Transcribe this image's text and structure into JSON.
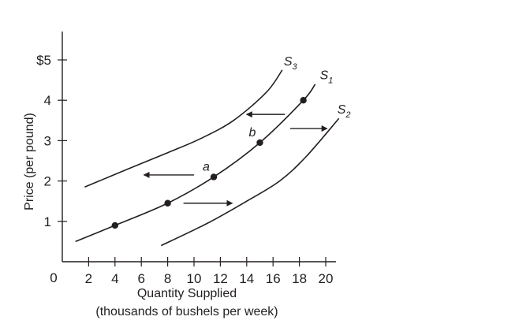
{
  "chart_data": {
    "type": "line",
    "title": "",
    "xlabel": "Quantity Supplied",
    "xlabel_line2": "(thousands of bushels per week)",
    "ylabel": "Price (per pound)",
    "xlim": [
      0,
      20
    ],
    "ylim": [
      0,
      5.5
    ],
    "origin_label": "0",
    "x_ticks": [
      2,
      4,
      6,
      8,
      10,
      12,
      14,
      16,
      18,
      20
    ],
    "x_tick_labels": [
      "2",
      "4",
      "6",
      "8",
      "10",
      "12",
      "14",
      "16",
      "18",
      "20"
    ],
    "y_ticks": [
      1,
      2,
      3,
      4,
      5
    ],
    "y_tick_labels": [
      "1",
      "2",
      "3",
      "4",
      "$5"
    ],
    "grid": false,
    "series": [
      {
        "name": "S",
        "subscript": "3",
        "x": [
          1.7,
          5,
          8,
          10.5,
          13,
          15.5,
          16.7
        ],
        "y": [
          1.85,
          2.3,
          2.7,
          3.05,
          3.5,
          4.2,
          4.75
        ]
      },
      {
        "name": "S",
        "subscript": "1",
        "x": [
          1,
          4,
          8,
          11.5,
          15,
          18.3,
          19.2
        ],
        "y": [
          0.5,
          0.9,
          1.45,
          2.1,
          2.95,
          4.0,
          4.4
        ]
      },
      {
        "name": "S",
        "subscript": "2",
        "x": [
          7.5,
          11,
          14,
          16.5,
          18.5,
          21
        ],
        "y": [
          0.4,
          0.95,
          1.5,
          2.0,
          2.6,
          3.55
        ]
      }
    ],
    "points": [
      {
        "x": 4,
        "y": 0.9,
        "label": ""
      },
      {
        "x": 8,
        "y": 1.45,
        "label": ""
      },
      {
        "x": 11.5,
        "y": 2.1,
        "label": "a"
      },
      {
        "x": 15,
        "y": 2.95,
        "label": "b"
      },
      {
        "x": 18.3,
        "y": 4.0,
        "label": ""
      }
    ],
    "arrows": [
      {
        "from": [
          10,
          2.15
        ],
        "to": [
          6.2,
          2.15
        ],
        "direction": "left"
      },
      {
        "from": [
          9.2,
          1.45
        ],
        "to": [
          12.9,
          1.45
        ],
        "direction": "right"
      },
      {
        "from": [
          16.9,
          3.65
        ],
        "to": [
          14,
          3.65
        ],
        "direction": "left"
      },
      {
        "from": [
          17.3,
          3.3
        ],
        "to": [
          20.1,
          3.3
        ],
        "direction": "right"
      }
    ]
  }
}
